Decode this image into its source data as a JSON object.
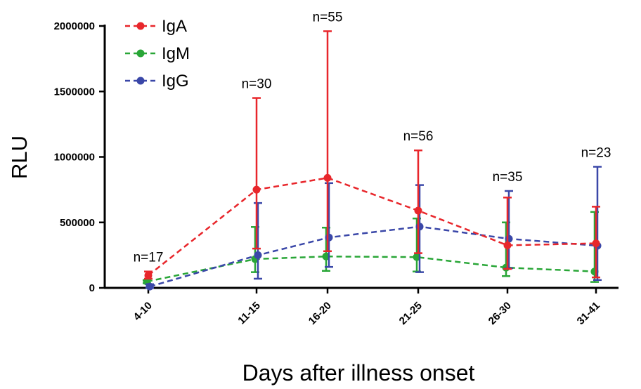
{
  "chart_data": {
    "type": "line",
    "xlabel": "Days after illness onset",
    "ylabel": "RLU",
    "ylim": [
      0,
      2000000
    ],
    "yticks": [
      0,
      500000,
      1000000,
      1500000,
      2000000
    ],
    "categories": [
      "4-10",
      "11-15",
      "16-20",
      "21-25",
      "26-30",
      "31-41"
    ],
    "sample_sizes": [
      "n=17",
      "n=30",
      "n=55",
      "n=56",
      "n=35",
      "n=23"
    ],
    "grid": false,
    "legend_position": "top-left",
    "series": [
      {
        "name": "IgA",
        "color": "#e8262b",
        "values": [
          95000,
          750000,
          840000,
          590000,
          325000,
          340000
        ],
        "upper": [
          125000,
          1450000,
          1960000,
          1050000,
          690000,
          620000
        ],
        "lower": [
          70000,
          300000,
          280000,
          265000,
          145000,
          80000
        ]
      },
      {
        "name": "IgM",
        "color": "#29a637",
        "values": [
          48000,
          220000,
          240000,
          235000,
          155000,
          125000
        ],
        "upper": [
          60000,
          465000,
          460000,
          530000,
          500000,
          580000
        ],
        "lower": [
          35000,
          120000,
          130000,
          125000,
          90000,
          45000
        ]
      },
      {
        "name": "IgG",
        "color": "#3a47a8",
        "values": [
          10000,
          250000,
          385000,
          468000,
          375000,
          322000
        ],
        "upper": [
          28000,
          648000,
          800000,
          785000,
          740000,
          925000
        ],
        "lower": [
          0,
          70000,
          160000,
          120000,
          150000,
          60000
        ]
      }
    ]
  }
}
